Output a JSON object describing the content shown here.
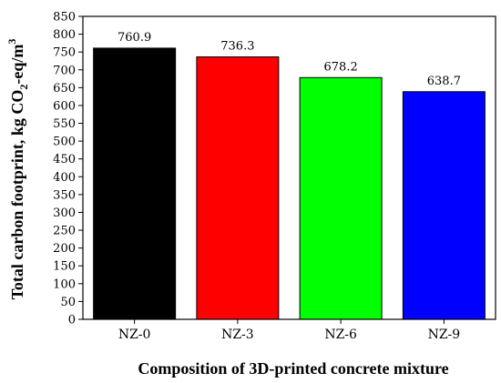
{
  "chart_data": {
    "type": "bar",
    "categories": [
      "NZ-0",
      "NZ-3",
      "NZ-6",
      "NZ-9"
    ],
    "values": [
      760.9,
      736.3,
      678.2,
      638.7
    ],
    "value_labels": [
      "760.9",
      "736.3",
      "678.2",
      "638.7"
    ],
    "colors": [
      "#000000",
      "#ff0000",
      "#00ff00",
      "#0000ff"
    ],
    "title": "",
    "xlabel": "Composition of 3D-printed concrete mixture",
    "ylabel": {
      "prefix": "Total carbon footprint, kg CO",
      "sub": "2",
      "mid": "-eq/m",
      "sup": "3"
    },
    "ylim": [
      0,
      850
    ],
    "yticks": [
      0,
      50,
      100,
      150,
      200,
      250,
      300,
      350,
      400,
      450,
      500,
      550,
      600,
      650,
      700,
      750,
      800,
      850
    ],
    "grid": false,
    "legend": "none"
  }
}
